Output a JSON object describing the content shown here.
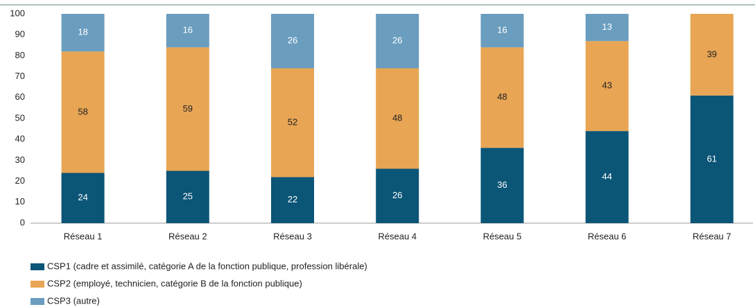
{
  "chart_data": {
    "type": "stacked_bar",
    "categories": [
      "Réseau 1",
      "Réseau 2",
      "Réseau 3",
      "Réseau 4",
      "Réseau 5",
      "Réseau 6",
      "Réseau 7"
    ],
    "series": [
      {
        "name": "CSP1 (cadre et assimilé, catégorie A de la fonction publique, profession libérale)",
        "color": "#0b5577",
        "label_color": "#ffffff",
        "values": [
          24,
          25,
          22,
          26,
          36,
          44,
          61
        ]
      },
      {
        "name": "CSP2 (employé, technicien, catégorie B de la fonction publique)",
        "color": "#e8a554",
        "label_color": "#222222",
        "values": [
          58,
          59,
          52,
          48,
          48,
          43,
          39
        ]
      },
      {
        "name": "CSP3 (autre)",
        "color": "#6a9dbe",
        "label_color": "#ffffff",
        "values": [
          18,
          16,
          26,
          26,
          16,
          13,
          null
        ]
      }
    ],
    "ylim": [
      0,
      100
    ],
    "yticks": [
      0,
      10,
      20,
      30,
      40,
      50,
      60,
      70,
      80,
      90,
      100
    ],
    "grid": false
  }
}
